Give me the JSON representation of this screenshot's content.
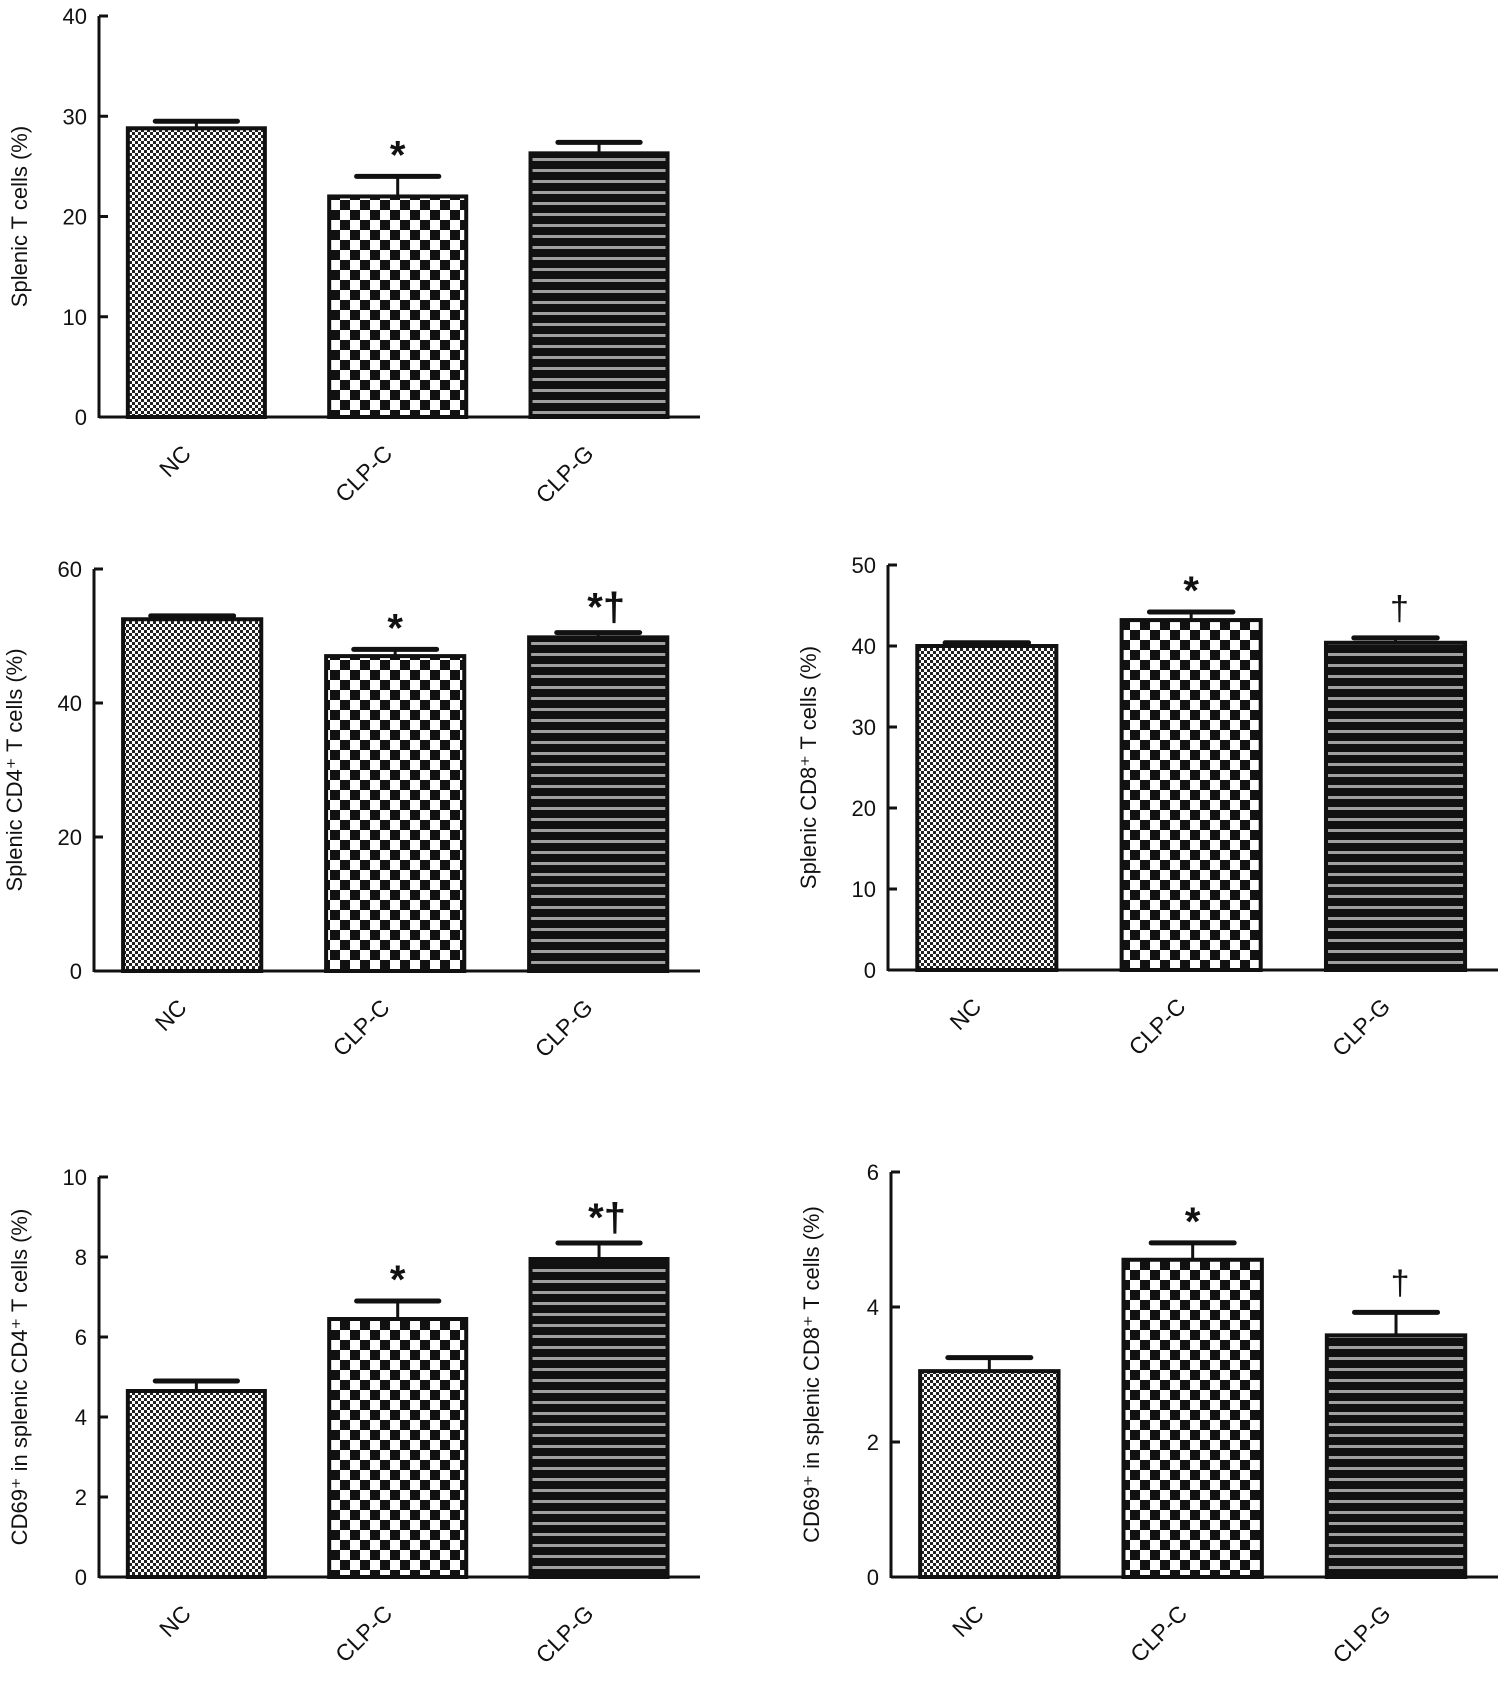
{
  "chart_data": [
    {
      "type": "bar",
      "title": "",
      "ylabel": "Splenic T cells (%)",
      "xlabel": "",
      "categories": [
        "NC",
        "CLP-C",
        "CLP-G"
      ],
      "values": [
        28.8,
        22.0,
        26.3
      ],
      "error": [
        0.7,
        2.0,
        1.1
      ],
      "ylim": [
        0,
        40
      ],
      "yticks": [
        0,
        10,
        20,
        30,
        40
      ],
      "annotations": [
        "",
        "*",
        ""
      ],
      "grid": false
    },
    {
      "type": "bar",
      "title": "",
      "ylabel": "Splenic CD4⁺ T cells (%)",
      "xlabel": "",
      "categories": [
        "NC",
        "CLP-C",
        "CLP-G"
      ],
      "values": [
        52.5,
        47.0,
        49.8
      ],
      "error": [
        0.5,
        1.0,
        0.7
      ],
      "ylim": [
        0,
        60
      ],
      "yticks": [
        0,
        20,
        40,
        60
      ],
      "annotations": [
        "",
        "*",
        "*†"
      ],
      "grid": false
    },
    {
      "type": "bar",
      "title": "",
      "ylabel": "Splenic CD8⁺ T cells (%)",
      "xlabel": "",
      "categories": [
        "NC",
        "CLP-C",
        "CLP-G"
      ],
      "values": [
        40.0,
        43.2,
        40.4
      ],
      "error": [
        0.4,
        1.0,
        0.6
      ],
      "ylim": [
        0,
        50
      ],
      "yticks": [
        0,
        10,
        20,
        30,
        40,
        50
      ],
      "annotations": [
        "",
        "*",
        "†"
      ],
      "grid": false
    },
    {
      "type": "bar",
      "title": "",
      "ylabel": "CD69⁺ in splenic CD4⁺ T cells (%)",
      "xlabel": "",
      "categories": [
        "NC",
        "CLP-C",
        "CLP-G"
      ],
      "values": [
        4.65,
        6.45,
        7.95
      ],
      "error": [
        0.25,
        0.45,
        0.4
      ],
      "ylim": [
        0,
        10
      ],
      "yticks": [
        0,
        2,
        4,
        6,
        8,
        10
      ],
      "annotations": [
        "",
        "*",
        "*†"
      ],
      "grid": false
    },
    {
      "type": "bar",
      "title": "",
      "ylabel": "CD69⁺ in splenic CD8⁺ T cells (%)",
      "xlabel": "",
      "categories": [
        "NC",
        "CLP-C",
        "CLP-G"
      ],
      "values": [
        3.05,
        4.7,
        3.58
      ],
      "error": [
        0.2,
        0.25,
        0.34
      ],
      "ylim": [
        0,
        6
      ],
      "yticks": [
        0,
        2,
        4,
        6
      ],
      "annotations": [
        "",
        "*",
        "†"
      ],
      "grid": false
    }
  ],
  "colors": {
    "ink": "#111111",
    "stripe": "#9a9a9a"
  }
}
